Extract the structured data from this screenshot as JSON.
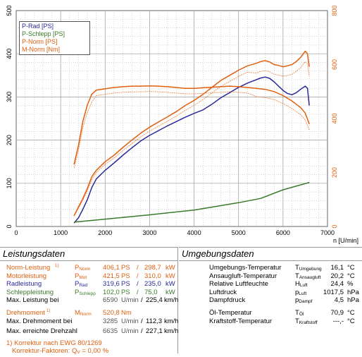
{
  "chart_data": {
    "type": "line",
    "xlabel": "n [U/min]",
    "xlim": [
      0,
      7000
    ],
    "xticks": [
      "0",
      "1000",
      "2000",
      "3000",
      "4000",
      "5000",
      "6000",
      "7000"
    ],
    "ylim_left": [
      0,
      500
    ],
    "yticks_left": [
      "0",
      "100",
      "200",
      "300",
      "400",
      "500"
    ],
    "ylim_right": [
      0,
      800
    ],
    "yticks_right": [
      "0",
      "200",
      "400",
      "600",
      "800"
    ],
    "grid": true,
    "legend_position": "top-left",
    "series": [
      {
        "name": "P-Rad [PS]",
        "color": "#2a2a9a",
        "axis": "left",
        "x": [
          1300,
          1400,
          1500,
          1600,
          1700,
          1800,
          2000,
          2200,
          2400,
          2600,
          2800,
          3000,
          3200,
          3400,
          3600,
          3800,
          4000,
          4200,
          4400,
          4600,
          4800,
          5000,
          5200,
          5400,
          5500,
          5600,
          5700,
          5800,
          5900,
          6000,
          6100,
          6200,
          6300,
          6400,
          6500,
          6550,
          6590
        ],
        "y": [
          8,
          20,
          40,
          62,
          90,
          110,
          130,
          147,
          165,
          182,
          198,
          211,
          222,
          233,
          243,
          253,
          262,
          270,
          283,
          298,
          310,
          322,
          332,
          340,
          344,
          346,
          343,
          335,
          325,
          315,
          308,
          305,
          310,
          318,
          325,
          320,
          280
        ]
      },
      {
        "name": "P-Schlepp [PS]",
        "color": "#3a7a2a",
        "axis": "left",
        "x": [
          1300,
          2000,
          3000,
          4000,
          5000,
          5500,
          6000,
          6590
        ],
        "y": [
          10,
          17,
          27,
          38,
          55,
          65,
          85,
          102
        ]
      },
      {
        "name": "P-Norm [PS]",
        "color": "#e06010",
        "axis": "left",
        "x": [
          1300,
          1400,
          1500,
          1600,
          1700,
          1800,
          2000,
          2200,
          2400,
          2600,
          2800,
          3000,
          3200,
          3400,
          3600,
          3800,
          4000,
          4200,
          4400,
          4600,
          4800,
          5000,
          5200,
          5400,
          5500,
          5600,
          5700,
          5800,
          5900,
          6000,
          6100,
          6200,
          6300,
          6400,
          6500,
          6550,
          6590
        ],
        "y": [
          25,
          45,
          65,
          88,
          115,
          130,
          150,
          165,
          183,
          200,
          216,
          230,
          242,
          254,
          266,
          280,
          292,
          306,
          322,
          338,
          350,
          362,
          372,
          378,
          382,
          384,
          381,
          375,
          373,
          370,
          372,
          375,
          382,
          392,
          406,
          400,
          370
        ]
      },
      {
        "name": "M-Norm [Nm]",
        "color": "#e06010",
        "axis": "right",
        "x": [
          1300,
          1400,
          1500,
          1600,
          1700,
          1800,
          2000,
          2200,
          2400,
          2600,
          2800,
          3000,
          3200,
          3400,
          3600,
          3800,
          4000,
          4200,
          4400,
          4600,
          4800,
          5000,
          5200,
          5400,
          5600,
          5800,
          6000,
          6200,
          6400,
          6500,
          6590
        ],
        "y": [
          230,
          300,
          390,
          450,
          490,
          505,
          510,
          515,
          518,
          520,
          520,
          521,
          520,
          518,
          515,
          512,
          512,
          514,
          516,
          518,
          520,
          518,
          515,
          512,
          508,
          500,
          485,
          465,
          440,
          420,
          380
        ]
      }
    ]
  },
  "legend": [
    "P-Rad [PS]",
    "P-Schlepp [PS]",
    "P-Norm [PS]",
    "M-Norm [Nm]"
  ],
  "colors": {
    "blue": "#2a2a9a",
    "green": "#3a7a2a",
    "orange": "#e06010"
  },
  "leistungsdaten": {
    "title": "Leistungsdaten",
    "norm": {
      "label": "Norm-Leistung",
      "sup": "1)",
      "sym": "P",
      "sub": "Norm",
      "v1": "406,1",
      "u1": "PS",
      "sep": "/",
      "v2": "298,7",
      "u2": "kW"
    },
    "motor": {
      "label": "Motorleistung",
      "sym": "P",
      "sub": "Mot",
      "v1": "421,5",
      "u1": "PS",
      "sep": "/",
      "v2": "310,0",
      "u2": "kW"
    },
    "rad": {
      "label": "Radleistung",
      "sym": "P",
      "sub": "Rad",
      "v1": "319,6",
      "u1": "PS",
      "sep": "/",
      "v2": "235,0",
      "u2": "kW"
    },
    "schlepp": {
      "label": "Schleppleistung",
      "sym": "P",
      "sub": "Schlepp",
      "v1": "102,0",
      "u1": "PS",
      "sep": "/",
      "v2": "75,0",
      "u2": "kW"
    },
    "maxleist": {
      "label": "Max. Leistung bei",
      "v1": "6590",
      "u1": "U/min",
      "sep": "/",
      "v2": "225,4",
      "u2": "km/h"
    },
    "dreh": {
      "label": "Drehmoment",
      "sup": "1)",
      "sym": "M",
      "sub": "Norm",
      "v1": "520,8",
      "u1": "Nm"
    },
    "maxdreh": {
      "label": "Max. Drehmoment bei",
      "v1": "3285",
      "u1": "U/min",
      "sep": "/",
      "v2": "112,3",
      "u2": "km/h"
    },
    "maxdrehzahl": {
      "label": "Max. erreichte Drehzahl",
      "v1": "6635",
      "u1": "U/min",
      "sep": "/",
      "v2": "227,1",
      "u2": "km/h"
    },
    "korrektur": "1) Korrektur nach EWG 80/1269",
    "faktoren": "Korrektur-Faktoren: Q",
    "faktoren_sub": "V",
    "faktoren_val": "=   0,00 %"
  },
  "umgebungsdaten": {
    "title": "Umgebungsdaten",
    "rows": [
      {
        "label": "Umgebungs-Temperatur",
        "sym": "T",
        "sub": "Umgebung",
        "val": "16,1",
        "unit": "°C"
      },
      {
        "label": "Ansaugluft-Temperatur",
        "sym": "T",
        "sub": "Ansaugluft",
        "val": "20,2",
        "unit": "°C"
      },
      {
        "label": "Relative Luftfeuchte",
        "sym": "H",
        "sub": "Luft",
        "val": "24,4",
        "unit": "%"
      },
      {
        "label": "Luftdruck",
        "sym": "p",
        "sub": "Luft",
        "val": "1017,5",
        "unit": "hPa"
      },
      {
        "label": "Dampfdruck",
        "sym": "p",
        "sub": "Dampf",
        "val": "4,5",
        "unit": "hPa"
      },
      {
        "label": "Öl-Temperatur",
        "sym": "T",
        "sub": "Öl",
        "val": "70,9",
        "unit": "°C"
      },
      {
        "label": "Kraftstoff-Temperatur",
        "sym": "T",
        "sub": "Kraftstoff",
        "val": "---,-",
        "unit": "°C"
      }
    ]
  }
}
